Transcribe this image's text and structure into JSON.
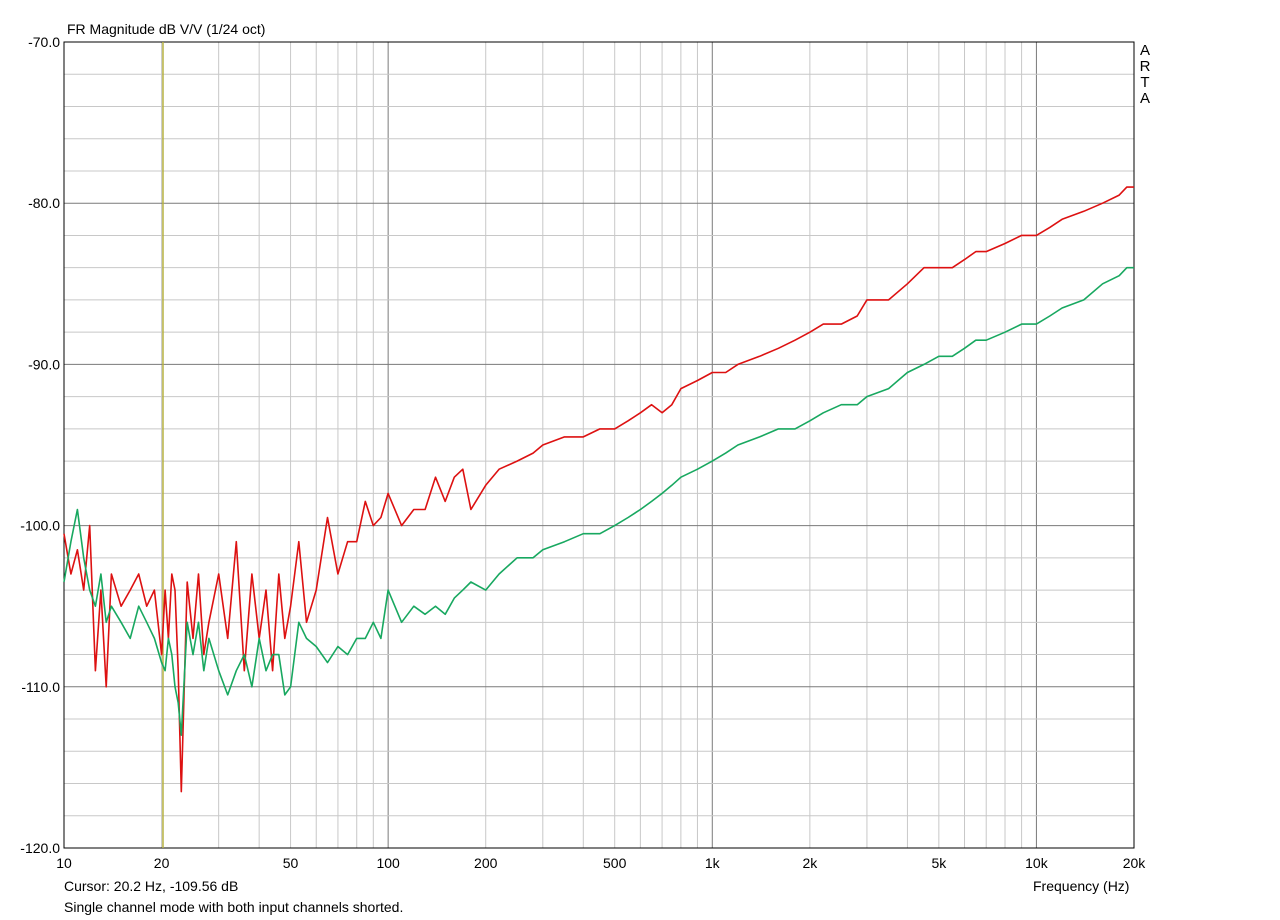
{
  "chart_data": {
    "type": "line",
    "title": "FR Magnitude dB V/V (1/24 oct)",
    "xlabel": "Frequency (Hz)",
    "x_scale": "log",
    "xlim": [
      10,
      20000
    ],
    "ylim": [
      -120,
      -70
    ],
    "x_ticks": [
      10,
      20,
      50,
      100,
      200,
      500,
      1000,
      2000,
      5000,
      10000,
      20000
    ],
    "x_tick_labels": [
      "10",
      "20",
      "50",
      "100",
      "200",
      "500",
      "1k",
      "2k",
      "5k",
      "10k",
      "20k"
    ],
    "y_ticks": [
      -70,
      -80,
      -90,
      -100,
      -110,
      -120
    ],
    "y_tick_labels": [
      "-70.0",
      "-80.0",
      "-90.0",
      "-100.0",
      "-110.0",
      "-120.0"
    ],
    "grid": true,
    "cursor_x": 20.2,
    "series": [
      {
        "color": "#dd1111",
        "x": [
          10,
          10.5,
          11,
          11.5,
          12,
          12.5,
          13,
          13.5,
          14,
          15,
          16,
          17,
          18,
          19,
          20,
          20.5,
          21,
          21.5,
          22,
          22.5,
          23,
          24,
          25,
          26,
          27,
          28,
          30,
          32,
          34,
          36,
          38,
          40,
          42,
          44,
          46,
          48,
          50,
          53,
          56,
          60,
          65,
          70,
          75,
          80,
          85,
          90,
          95,
          100,
          110,
          120,
          130,
          140,
          150,
          160,
          170,
          180,
          200,
          220,
          250,
          280,
          300,
          350,
          400,
          450,
          500,
          550,
          600,
          650,
          700,
          750,
          800,
          900,
          1000,
          1100,
          1200,
          1400,
          1600,
          1800,
          2000,
          2200,
          2500,
          2800,
          3000,
          3500,
          4000,
          4500,
          5000,
          5500,
          6000,
          6500,
          7000,
          8000,
          9000,
          10000,
          11000,
          12000,
          14000,
          16000,
          18000,
          19000,
          20000
        ],
        "values": [
          -100.5,
          -103,
          -101.5,
          -104,
          -100,
          -109,
          -104,
          -110,
          -103,
          -105,
          -104,
          -103,
          -105,
          -104,
          -108,
          -104,
          -107,
          -103,
          -104,
          -109,
          -116.5,
          -103.5,
          -107,
          -103,
          -108,
          -106,
          -103,
          -107,
          -101,
          -109,
          -103,
          -107,
          -104,
          -109,
          -103,
          -107,
          -105,
          -101,
          -106,
          -104,
          -99.5,
          -103,
          -101,
          -101,
          -98.5,
          -100,
          -99.5,
          -98,
          -100,
          -99,
          -99,
          -97,
          -98.5,
          -97,
          -96.5,
          -99,
          -97.5,
          -96.5,
          -96,
          -95.5,
          -95,
          -94.5,
          -94.5,
          -94,
          -94,
          -93.5,
          -93,
          -92.5,
          -93,
          -92.5,
          -91.5,
          -91,
          -90.5,
          -90.5,
          -90,
          -89.5,
          -89,
          -88.5,
          -88,
          -87.5,
          -87.5,
          -87,
          -86,
          -86,
          -85,
          -84,
          -84,
          -84,
          -83.5,
          -83,
          -83,
          -82.5,
          -82,
          -82,
          -81.5,
          -81,
          -80.5,
          -80,
          -79.5,
          -79,
          -79
        ]
      },
      {
        "color": "#18a860",
        "x": [
          10,
          10.5,
          11,
          11.5,
          12,
          12.5,
          13,
          13.5,
          14,
          15,
          16,
          17,
          18,
          19,
          20,
          20.5,
          21,
          21.5,
          22,
          22.5,
          23,
          24,
          25,
          26,
          27,
          28,
          30,
          32,
          34,
          36,
          38,
          40,
          42,
          44,
          46,
          48,
          50,
          53,
          56,
          60,
          65,
          70,
          75,
          80,
          85,
          90,
          95,
          100,
          110,
          120,
          130,
          140,
          150,
          160,
          170,
          180,
          200,
          220,
          250,
          280,
          300,
          350,
          400,
          450,
          500,
          550,
          600,
          650,
          700,
          750,
          800,
          900,
          1000,
          1100,
          1200,
          1400,
          1600,
          1800,
          2000,
          2200,
          2500,
          2800,
          3000,
          3500,
          4000,
          4500,
          5000,
          5500,
          6000,
          6500,
          7000,
          8000,
          9000,
          10000,
          11000,
          12000,
          14000,
          16000,
          18000,
          19000,
          20000
        ],
        "values": [
          -103.5,
          -101,
          -99,
          -102,
          -104,
          -105,
          -103,
          -106,
          -105,
          -106,
          -107,
          -105,
          -106,
          -107,
          -108.5,
          -109,
          -107,
          -108,
          -110,
          -111,
          -113,
          -106,
          -108,
          -106,
          -109,
          -107,
          -109,
          -110.5,
          -109,
          -108,
          -110,
          -107,
          -109,
          -108,
          -108,
          -110.5,
          -110,
          -106,
          -107,
          -107.5,
          -108.5,
          -107.5,
          -108,
          -107,
          -107,
          -106,
          -107,
          -104,
          -106,
          -105,
          -105.5,
          -105,
          -105.5,
          -104.5,
          -104,
          -103.5,
          -104,
          -103,
          -102,
          -102,
          -101.5,
          -101,
          -100.5,
          -100.5,
          -100,
          -99.5,
          -99,
          -98.5,
          -98,
          -97.5,
          -97,
          -96.5,
          -96,
          -95.5,
          -95,
          -94.5,
          -94,
          -94,
          -93.5,
          -93,
          -92.5,
          -92.5,
          -92,
          -91.5,
          -90.5,
          -90,
          -89.5,
          -89.5,
          -89,
          -88.5,
          -88.5,
          -88,
          -87.5,
          -87.5,
          -87,
          -86.5,
          -86,
          -85,
          -84.5,
          -84,
          -84
        ]
      }
    ]
  },
  "arta_logo": "ARTA",
  "cursor_text": "Cursor: 20.2 Hz, -109.56 dB",
  "note_text": "Single channel mode with both input channels shorted."
}
